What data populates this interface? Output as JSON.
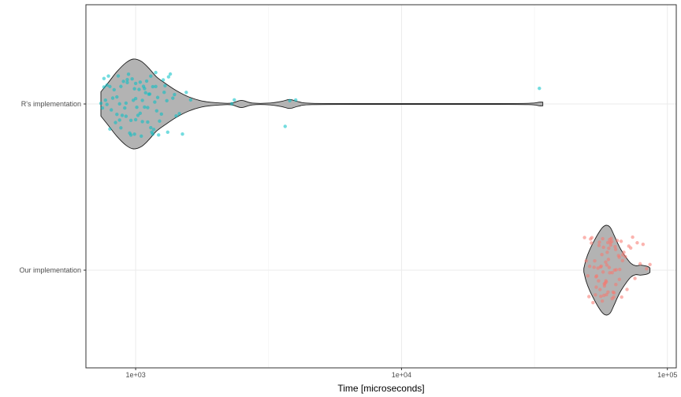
{
  "chart_data": {
    "type": "violin",
    "orientation": "horizontal",
    "xlabel": "Time [microseconds]",
    "ylabel": "",
    "x_scale": "log10",
    "xlim": [
      650,
      108000
    ],
    "x_ticks": [
      {
        "value": 1000,
        "label": "1e+03"
      },
      {
        "value": 10000,
        "label": "1e+04"
      },
      {
        "value": 100000,
        "label": "1e+05"
      }
    ],
    "categories": [
      "Our implementation",
      "R's implementation"
    ],
    "grid": true,
    "legend": "none",
    "violin_fill": "#b3b3b3",
    "series": [
      {
        "category": "R's implementation",
        "color": "#00bfc4",
        "range": [
          740,
          34000
        ],
        "median": 1000,
        "violin_profile": [
          [
            740,
            0.27
          ],
          [
            790,
            0.48
          ],
          [
            850,
            0.72
          ],
          [
            920,
            0.92
          ],
          [
            980,
            1.0
          ],
          [
            1050,
            0.95
          ],
          [
            1120,
            0.8
          ],
          [
            1200,
            0.6
          ],
          [
            1300,
            0.45
          ],
          [
            1420,
            0.3
          ],
          [
            1580,
            0.16
          ],
          [
            1800,
            0.06
          ],
          [
            2100,
            0.02
          ],
          [
            2300,
            0.02
          ],
          [
            2500,
            0.08
          ],
          [
            2750,
            0.02
          ],
          [
            3200,
            0.02
          ],
          [
            3550,
            0.06
          ],
          [
            3800,
            0.1
          ],
          [
            4100,
            0.05
          ],
          [
            4600,
            0.015
          ],
          [
            8000,
            0.01
          ],
          [
            20000,
            0.01
          ],
          [
            30000,
            0.015
          ],
          [
            33000,
            0.04
          ],
          [
            34000,
            0.04
          ]
        ],
        "values": [
          740,
          750,
          760,
          760,
          770,
          780,
          790,
          800,
          810,
          820,
          830,
          840,
          850,
          860,
          870,
          880,
          890,
          900,
          910,
          920,
          930,
          940,
          950,
          960,
          970,
          980,
          990,
          1000,
          1000,
          1010,
          1020,
          1030,
          1040,
          1050,
          1060,
          1070,
          1080,
          1090,
          1100,
          1110,
          1120,
          1130,
          1140,
          1150,
          1160,
          1170,
          1180,
          1190,
          1200,
          1210,
          1230,
          1250,
          1270,
          1290,
          1310,
          1330,
          1350,
          1380,
          1420,
          1460,
          1500,
          1550,
          1610,
          2300,
          2350,
          3650,
          3800,
          4000,
          33000,
          800,
          870,
          930,
          990,
          1060,
          1140,
          1220,
          1320,
          880,
          960,
          1040,
          1110,
          1190,
          1280,
          1400,
          780,
          850,
          920,
          1000,
          1080,
          1160
        ]
      },
      {
        "category": "Our implementation",
        "color": "#f8766d",
        "range": [
          48500,
          86000
        ],
        "median": 59000,
        "violin_profile": [
          [
            48500,
            0.04
          ],
          [
            49500,
            0.25
          ],
          [
            51000,
            0.45
          ],
          [
            53000,
            0.65
          ],
          [
            55000,
            0.82
          ],
          [
            57000,
            0.95
          ],
          [
            59000,
            1.0
          ],
          [
            61000,
            0.95
          ],
          [
            63000,
            0.78
          ],
          [
            65000,
            0.6
          ],
          [
            67000,
            0.45
          ],
          [
            70000,
            0.28
          ],
          [
            73000,
            0.15
          ],
          [
            76000,
            0.1
          ],
          [
            79000,
            0.11
          ],
          [
            82000,
            0.1
          ],
          [
            84500,
            0.08
          ],
          [
            86000,
            0.05
          ]
        ],
        "values": [
          48800,
          49500,
          50200,
          51000,
          51800,
          52500,
          53000,
          53600,
          54200,
          54800,
          55300,
          55800,
          56200,
          56700,
          57100,
          57500,
          57900,
          58300,
          58700,
          59000,
          59400,
          59800,
          60200,
          60600,
          61000,
          61500,
          62000,
          62500,
          63000,
          63600,
          64200,
          64800,
          65500,
          66200,
          67000,
          67800,
          68600,
          69500,
          70500,
          71600,
          72800,
          74000,
          75500,
          77000,
          79000,
          81000,
          83500,
          86000,
          52000,
          54000,
          56000,
          58000,
          60000,
          62000,
          64000,
          66000,
          68000,
          53300,
          55500,
          57700,
          59700,
          61800,
          63900,
          65900,
          51400,
          53900,
          56400,
          58600,
          60700,
          62800,
          57300,
          59200,
          61200,
          50700,
          55100,
          63300,
          67300,
          58900,
          60400,
          56900
        ]
      }
    ]
  }
}
